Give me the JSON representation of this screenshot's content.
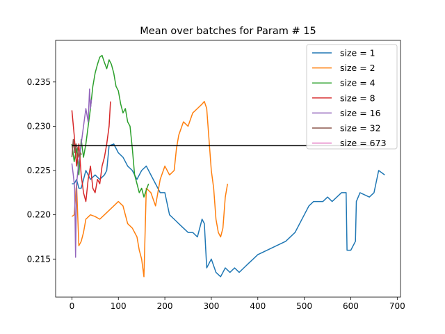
{
  "chart_data": {
    "type": "line",
    "title": "Mean over batches for Param # 15",
    "xlabel": "",
    "ylabel": "",
    "xlim": [
      -35,
      707
    ],
    "ylim": [
      0.2107,
      0.2397
    ],
    "xticks": [
      0,
      100,
      200,
      300,
      400,
      500,
      600,
      700
    ],
    "yticks": [
      0.215,
      0.22,
      0.225,
      0.23,
      0.235
    ],
    "ytick_labels": [
      "0.215",
      "0.220",
      "0.225",
      "0.230",
      "0.235"
    ],
    "grid": false,
    "legend_position": "top-right",
    "hline": {
      "y": 0.2278,
      "x_range": [
        0,
        673
      ],
      "color": "#000000"
    },
    "series": [
      {
        "name": "size = 1",
        "color": "#1f77b4",
        "x": [
          0,
          5,
          10,
          15,
          20,
          30,
          40,
          50,
          60,
          70,
          75,
          80,
          90,
          100,
          110,
          115,
          120,
          130,
          140,
          150,
          160,
          170,
          180,
          190,
          200,
          210,
          220,
          230,
          240,
          250,
          260,
          270,
          280,
          285,
          290,
          300,
          310,
          320,
          330,
          340,
          350,
          360,
          370,
          380,
          390,
          400,
          420,
          440,
          460,
          480,
          500,
          510,
          520,
          540,
          550,
          560,
          580,
          590,
          592,
          600,
          610,
          612,
          620,
          640,
          650,
          660,
          673
        ],
        "y": [
          0.2235,
          0.2235,
          0.224,
          0.223,
          0.223,
          0.225,
          0.224,
          0.2245,
          0.224,
          0.2245,
          0.225,
          0.2278,
          0.228,
          0.227,
          0.2265,
          0.226,
          0.2255,
          0.225,
          0.224,
          0.225,
          0.2255,
          0.2245,
          0.2235,
          0.2225,
          0.2225,
          0.22,
          0.2195,
          0.219,
          0.2185,
          0.218,
          0.218,
          0.2175,
          0.2195,
          0.219,
          0.214,
          0.215,
          0.2135,
          0.213,
          0.214,
          0.2135,
          0.214,
          0.2135,
          0.214,
          0.2145,
          0.215,
          0.2155,
          0.216,
          0.2165,
          0.217,
          0.218,
          0.22,
          0.221,
          0.2215,
          0.2215,
          0.222,
          0.2215,
          0.2225,
          0.2225,
          0.216,
          0.216,
          0.217,
          0.2215,
          0.2225,
          0.222,
          0.2225,
          0.225,
          0.2245
        ]
      },
      {
        "name": "size = 2",
        "color": "#ff7f0e",
        "x": [
          0,
          5,
          10,
          15,
          20,
          25,
          30,
          40,
          50,
          60,
          70,
          80,
          90,
          100,
          110,
          120,
          130,
          140,
          145,
          150,
          155,
          160,
          170,
          180,
          190,
          200,
          210,
          220,
          225,
          230,
          240,
          250,
          260,
          270,
          280,
          285,
          290,
          300,
          305,
          310,
          315,
          320,
          325,
          330,
          335
        ],
        "y": [
          0.2198,
          0.22,
          0.2235,
          0.2165,
          0.217,
          0.218,
          0.2195,
          0.22,
          0.2198,
          0.2195,
          0.22,
          0.2205,
          0.221,
          0.2215,
          0.221,
          0.219,
          0.2185,
          0.2175,
          0.216,
          0.215,
          0.213,
          0.223,
          0.2225,
          0.221,
          0.224,
          0.2255,
          0.2245,
          0.225,
          0.2275,
          0.229,
          0.2305,
          0.23,
          0.2315,
          0.232,
          0.2325,
          0.2328,
          0.232,
          0.225,
          0.223,
          0.2195,
          0.218,
          0.2175,
          0.2185,
          0.222,
          0.2235
        ]
      },
      {
        "name": "size = 4",
        "color": "#2ca02c",
        "x": [
          0,
          5,
          10,
          15,
          20,
          25,
          30,
          35,
          40,
          45,
          50,
          55,
          60,
          65,
          70,
          75,
          80,
          85,
          90,
          95,
          100,
          105,
          110,
          115,
          120,
          125,
          130,
          135,
          140,
          145,
          150,
          155,
          160,
          165
        ],
        "y": [
          0.228,
          0.226,
          0.2275,
          0.2245,
          0.2285,
          0.2265,
          0.228,
          0.23,
          0.232,
          0.2345,
          0.236,
          0.237,
          0.2378,
          0.238,
          0.2372,
          0.2365,
          0.2375,
          0.237,
          0.236,
          0.2345,
          0.234,
          0.2325,
          0.2315,
          0.232,
          0.2305,
          0.23,
          0.2275,
          0.2245,
          0.2235,
          0.2225,
          0.223,
          0.222,
          0.2228,
          0.2235
        ]
      },
      {
        "name": "size = 8",
        "color": "#d62728",
        "x": [
          0,
          5,
          10,
          15,
          20,
          25,
          30,
          35,
          40,
          45,
          50,
          55,
          60,
          65,
          70,
          75,
          80,
          83
        ],
        "y": [
          0.2318,
          0.229,
          0.2255,
          0.228,
          0.2245,
          0.2225,
          0.2215,
          0.224,
          0.2255,
          0.223,
          0.2225,
          0.224,
          0.2235,
          0.2255,
          0.2265,
          0.228,
          0.23,
          0.2328
        ]
      },
      {
        "name": "size = 16",
        "color": "#9467bd",
        "x": [
          0,
          3,
          6,
          8,
          10,
          13,
          16,
          20,
          25,
          30,
          35,
          38,
          40,
          42
        ],
        "y": [
          0.2258,
          0.2245,
          0.223,
          0.2152,
          0.2235,
          0.225,
          0.2265,
          0.228,
          0.23,
          0.232,
          0.2305,
          0.2342,
          0.232,
          0.233
        ]
      },
      {
        "name": "size = 32",
        "color": "#8c564b",
        "x": [
          0,
          3,
          6,
          9,
          12,
          15,
          18,
          21
        ],
        "y": [
          0.2265,
          0.2285,
          0.227,
          0.228,
          0.2275,
          0.2265,
          0.227,
          0.2268
        ]
      },
      {
        "name": "size = 673",
        "color": "#e377c2",
        "x": [
          0
        ],
        "y": [
          0.2278
        ]
      }
    ]
  }
}
